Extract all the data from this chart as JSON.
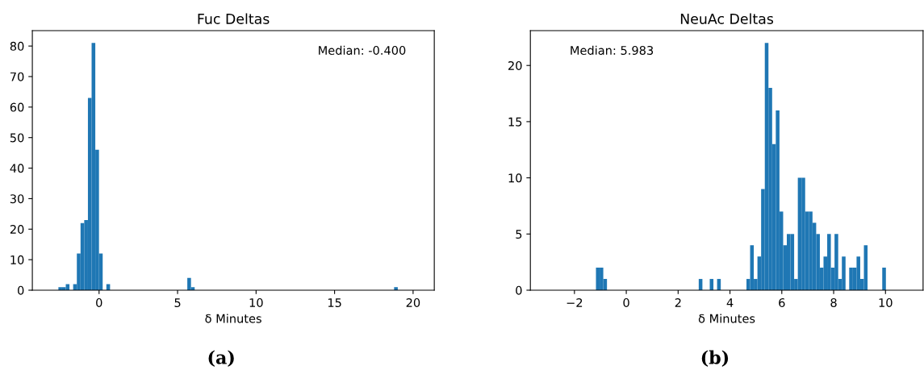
{
  "chart_data": [
    {
      "type": "histogram",
      "title": "Fuc Deltas",
      "xlabel": "δ Minutes",
      "color": "#1f77b4",
      "grid": false,
      "bins": [
        -2.59,
        -2.355,
        -2.12,
        -1.885,
        -1.65,
        -1.415,
        -1.18,
        -0.945,
        -0.71,
        -0.475,
        -0.24,
        -0.005,
        0.23,
        0.465,
        0.7,
        5.62,
        5.855,
        6.09,
        18.79,
        19.025
      ],
      "values": [
        1,
        1,
        2,
        0,
        2,
        12,
        22,
        23,
        63,
        81,
        46,
        12,
        0,
        2,
        0,
        4,
        1,
        0,
        1
      ],
      "xlim": [
        -4.25,
        21.35
      ],
      "xticks": [
        0,
        5,
        10,
        15,
        20
      ],
      "ylim": [
        0,
        85.05
      ],
      "yticks": [
        0,
        10,
        20,
        30,
        40,
        50,
        60,
        70,
        80
      ],
      "annotations": [
        "Median: -0.400",
        "(a)"
      ]
    },
    {
      "type": "histogram",
      "title": "NeuAc Deltas",
      "xlabel": "δ Minutes",
      "color": "#1f77b4",
      "grid": false,
      "bins": [
        -1.17,
        -1.028,
        -0.887,
        -0.745,
        2.795,
        2.937,
        3.22,
        3.362,
        3.503,
        3.645,
        4.636,
        4.777,
        4.919,
        5.06,
        5.202,
        5.344,
        5.485,
        5.627,
        5.768,
        5.91,
        6.052,
        6.193,
        6.335,
        6.476,
        6.618,
        6.76,
        6.901,
        7.043,
        7.184,
        7.326,
        7.468,
        7.609,
        7.751,
        7.892,
        8.034,
        8.176,
        8.317,
        8.459,
        8.6,
        8.742,
        8.884,
        9.025,
        9.167,
        9.308,
        9.875,
        10.016
      ],
      "values": [
        2,
        2,
        1,
        0,
        1,
        0,
        1,
        0,
        1,
        0,
        1,
        4,
        1,
        3,
        9,
        22,
        18,
        13,
        16,
        7,
        4,
        5,
        5,
        1,
        10,
        10,
        7,
        7,
        6,
        5,
        2,
        3,
        5,
        2,
        5,
        1,
        3,
        0,
        2,
        2,
        3,
        1,
        4,
        0,
        2
      ],
      "xlim": [
        -3.7,
        11.45
      ],
      "xticks": [
        {
          "value": -2,
          "label": "−2"
        },
        0,
        2,
        4,
        6,
        8,
        10
      ],
      "ylim": [
        0,
        23.1
      ],
      "yticks": [
        0,
        5,
        10,
        15,
        20
      ],
      "annotations": [
        "Median: 5.983",
        "(b)"
      ]
    }
  ]
}
